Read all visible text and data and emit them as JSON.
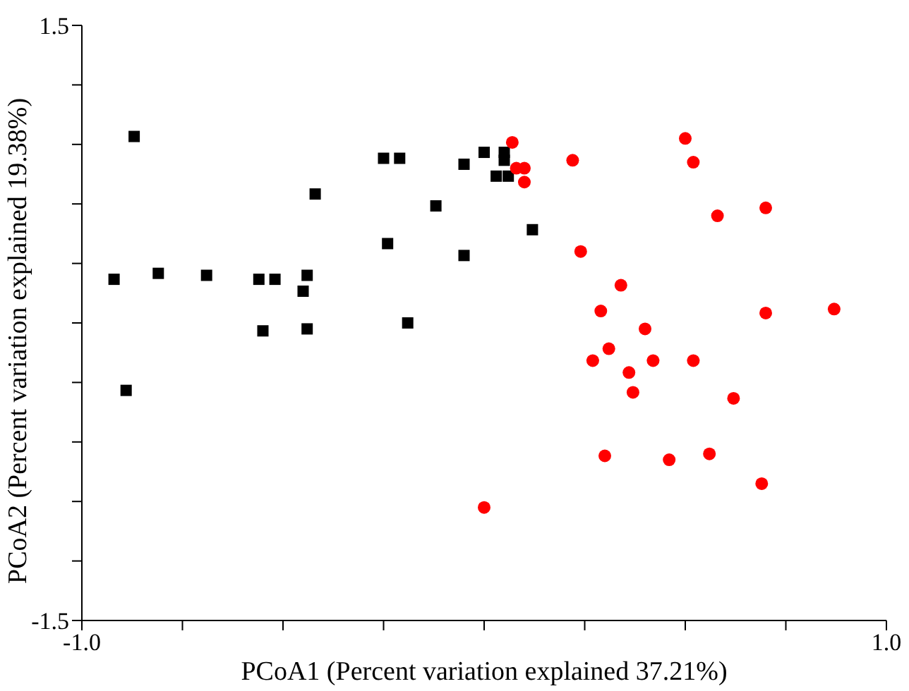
{
  "chart_data": {
    "type": "scatter",
    "xlabel": "PCoA1 (Percent variation explained 37.21%)",
    "ylabel": "PCoA2 (Percent variation explained 19.38%)",
    "xlim": [
      -1.0,
      1.0
    ],
    "ylim": [
      -1.5,
      1.5
    ],
    "xticks": [
      {
        "value": -1.0,
        "label": "-1.0"
      },
      {
        "value": -0.75,
        "label": null
      },
      {
        "value": -0.5,
        "label": null
      },
      {
        "value": -0.25,
        "label": null
      },
      {
        "value": 0,
        "label": null
      },
      {
        "value": 0.25,
        "label": null
      },
      {
        "value": 0.5,
        "label": null
      },
      {
        "value": 0.75,
        "label": null
      },
      {
        "value": 1.0,
        "label": "1.0"
      }
    ],
    "yticks": [
      {
        "value": -1.5,
        "label": "-1.5"
      },
      {
        "value": -1.2,
        "label": null
      },
      {
        "value": -0.9,
        "label": null
      },
      {
        "value": -0.6,
        "label": null
      },
      {
        "value": -0.3,
        "label": null
      },
      {
        "value": 0,
        "label": null
      },
      {
        "value": 0.3,
        "label": null
      },
      {
        "value": 0.6,
        "label": null
      },
      {
        "value": 0.9,
        "label": null
      },
      {
        "value": 1.2,
        "label": null
      },
      {
        "value": 1.5,
        "label": "1.5"
      }
    ],
    "grid": false,
    "legend": false,
    "series": [
      {
        "color": "#000000",
        "marker": "square",
        "x": [
          -0.87,
          -0.25,
          -0.21,
          -0.05,
          0.0,
          0.03,
          -0.42,
          -0.12,
          -0.24,
          -0.05,
          -0.92,
          -0.81,
          -0.69,
          -0.56,
          -0.52,
          -0.44,
          -0.45,
          -0.55,
          -0.44,
          -0.19,
          -0.89,
          0.05,
          0.05,
          0.06,
          0.12
        ],
        "values": [
          0.94,
          0.83,
          0.83,
          0.8,
          0.86,
          0.74,
          0.65,
          0.59,
          0.4,
          0.34,
          0.22,
          0.25,
          0.24,
          0.22,
          0.22,
          0.24,
          0.16,
          -0.04,
          -0.03,
          0.0,
          -0.34,
          0.86,
          0.82,
          0.74,
          0.47
        ]
      },
      {
        "color": "#ff0000",
        "marker": "circle",
        "x": [
          0.07,
          0.08,
          0.1,
          0.1,
          0.22,
          0.5,
          0.52,
          0.58,
          0.7,
          0.24,
          0.34,
          0.29,
          0.7,
          0.87,
          0.4,
          0.31,
          0.27,
          0.42,
          0.52,
          0.36,
          0.37,
          0.62,
          0.3,
          0.46,
          0.56,
          0.69,
          0.0
        ],
        "values": [
          0.91,
          0.78,
          0.78,
          0.71,
          0.82,
          0.93,
          0.81,
          0.54,
          0.58,
          0.36,
          0.19,
          0.06,
          0.05,
          0.07,
          -0.03,
          -0.13,
          -0.19,
          -0.19,
          -0.19,
          -0.25,
          -0.35,
          -0.38,
          -0.67,
          -0.69,
          -0.66,
          -0.81,
          -0.93
        ]
      }
    ]
  }
}
